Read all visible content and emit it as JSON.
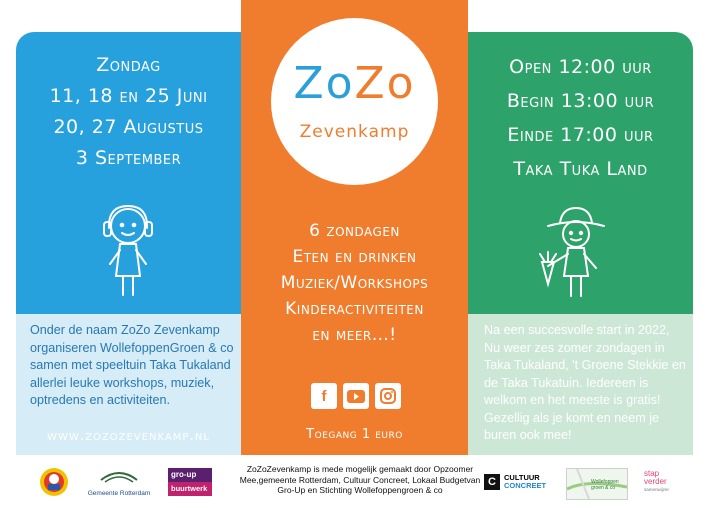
{
  "left": {
    "dates": [
      "Zondag",
      "11, 18 en 25 Juni",
      "20, 27 Augustus",
      "3 September"
    ],
    "paragraph": "Onder de naam ZoZo Zevenkamp organiseren WollefoppenGroen & co samen met speeltuin Taka Tukaland allerlei leuke workshops, muziek, optredens en activiteiten.",
    "url": "www.zozozevenkamp.nl"
  },
  "center": {
    "logo": {
      "zo1": "Zo",
      "zo2": "Zo",
      "sub": "Zevenkamp"
    },
    "features": [
      "6 zondagen",
      "Eten en drinken",
      "Muziek/Workshops",
      "Kinderactiviteiten",
      "en meer…!"
    ],
    "social_icons": [
      "facebook-icon",
      "youtube-icon",
      "instagram-icon"
    ],
    "entry": "Toegang 1 euro"
  },
  "right": {
    "times": [
      "Open 12:00 uur",
      "Begin 13:00 uur",
      "Einde 17:00 uur",
      "Taka Tuka Land"
    ],
    "paragraph": "Na een succesvolle start in 2022, Nu weer zes zomer zondagen in Taka Tukaland, 't Groene Stekkie en de Taka Tukatuin. Iedereen is welkom en het meeste is gratis! Gezellig als je komt en neem je buren ook mee!"
  },
  "footer": {
    "credits": "ZoZoZevenkamp is mede mogelijk gemaakt door Opzoomer Mee,gemeente Rotterdam, Cultuur Concreet, Lokaal Budgetvan Gro-Up en Stichting Wollefoppengroen & co",
    "sponsors": {
      "rotterdam": "Gemeente Rotterdam",
      "group_top": "gro-up",
      "group_bottom": "buurtwerk",
      "cultuur_mark": "C",
      "cultuur_top": "CULTUUR",
      "cultuur_bottom": "CONCREET",
      "wolle": "Wollefoppen groen & co",
      "stap_line1": "stap",
      "stap_line2": "verder",
      "stap_line3": "samenwijzer"
    }
  },
  "colors": {
    "blue": "#27a1de",
    "light_blue": "#d6ecf7",
    "orange": "#ef7d2d",
    "green": "#2ea26b",
    "light_green": "#cde7d6",
    "logo_blue": "#2a9fd8"
  }
}
